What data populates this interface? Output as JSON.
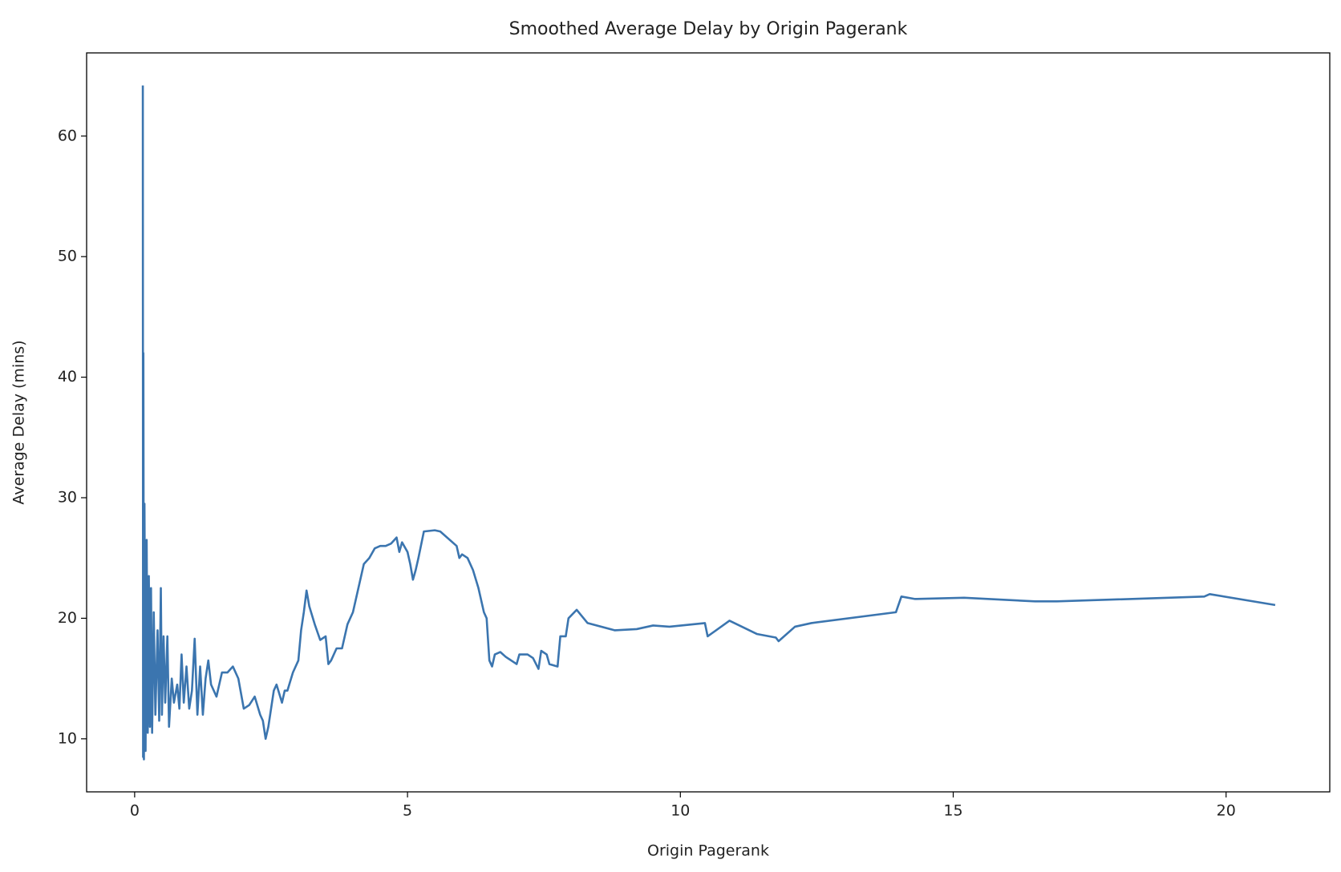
{
  "chart_data": {
    "type": "line",
    "title": "Smoothed Average Delay by Origin Pagerank",
    "xlabel": "Origin Pagerank",
    "ylabel": "Average Delay (mins)",
    "xlim": [
      -0.88,
      21.9
    ],
    "xticks": [
      0,
      5,
      10,
      15,
      20
    ],
    "ylim": [
      5.6,
      66.9
    ],
    "yticks": [
      10,
      20,
      30,
      40,
      50,
      60
    ],
    "grid": false,
    "series": [
      {
        "color": "#3b75af",
        "x": [
          0.15,
          0.155,
          0.16,
          0.17,
          0.18,
          0.2,
          0.22,
          0.24,
          0.26,
          0.28,
          0.3,
          0.32,
          0.35,
          0.38,
          0.42,
          0.45,
          0.48,
          0.5,
          0.53,
          0.56,
          0.6,
          0.63,
          0.68,
          0.72,
          0.78,
          0.82,
          0.86,
          0.9,
          0.95,
          1.0,
          1.05,
          1.1,
          1.15,
          1.2,
          1.25,
          1.3,
          1.35,
          1.4,
          1.5,
          1.6,
          1.7,
          1.8,
          1.9,
          2.0,
          2.1,
          2.2,
          2.3,
          2.35,
          2.4,
          2.45,
          2.5,
          2.55,
          2.6,
          2.7,
          2.75,
          2.8,
          2.9,
          3.0,
          3.05,
          3.1,
          3.15,
          3.2,
          3.3,
          3.4,
          3.5,
          3.55,
          3.6,
          3.7,
          3.8,
          3.9,
          4.0,
          4.1,
          4.2,
          4.3,
          4.4,
          4.5,
          4.6,
          4.7,
          4.8,
          4.85,
          4.9,
          5.0,
          5.05,
          5.1,
          5.15,
          5.2,
          5.3,
          5.5,
          5.6,
          5.9,
          5.95,
          6.0,
          6.1,
          6.2,
          6.3,
          6.4,
          6.45,
          6.5,
          6.55,
          6.6,
          6.7,
          6.8,
          6.9,
          7.0,
          7.05,
          7.2,
          7.3,
          7.4,
          7.45,
          7.55,
          7.6,
          7.75,
          7.8,
          7.9,
          7.95,
          8.1,
          8.3,
          8.8,
          9.2,
          9.5,
          9.8,
          10.45,
          10.5,
          10.9,
          11.4,
          11.75,
          11.8,
          12.1,
          12.4,
          13.95,
          14.05,
          14.3,
          15.2,
          16.5,
          16.9,
          19.6,
          19.7,
          20.9
        ],
        "values": [
          64.2,
          8.5,
          42,
          8.3,
          29.5,
          9,
          26.5,
          10.5,
          23.5,
          11,
          22.5,
          10.5,
          20.5,
          12,
          19,
          11.5,
          22.5,
          12,
          18.5,
          13,
          18.5,
          11,
          15,
          13,
          14.5,
          12.5,
          17,
          13,
          16,
          12.5,
          14,
          18.3,
          12,
          16,
          12,
          15,
          16.5,
          14.5,
          13.5,
          15.5,
          15.5,
          16,
          15,
          12.5,
          12.8,
          13.5,
          12,
          11.5,
          10,
          11,
          12.5,
          14,
          14.5,
          13,
          14,
          14,
          15.5,
          16.5,
          19,
          20.5,
          22.3,
          21,
          19.5,
          18.2,
          18.5,
          16.2,
          16.5,
          17.5,
          17.5,
          19.5,
          20.5,
          22.5,
          24.5,
          25,
          25.8,
          26,
          26,
          26.2,
          26.7,
          25.5,
          26.3,
          25.5,
          24.5,
          23.2,
          24,
          25,
          27.2,
          27.3,
          27.2,
          26,
          25,
          25.3,
          25,
          24,
          22.5,
          20.5,
          20,
          16.5,
          16,
          17,
          17.2,
          16.8,
          16.5,
          16.2,
          17,
          17,
          16.7,
          15.8,
          17.3,
          17,
          16.2,
          16,
          18.5,
          18.5,
          20,
          20.7,
          19.6,
          19,
          19.1,
          19.4,
          19.3,
          19.6,
          18.5,
          19.8,
          18.7,
          18.4,
          18.1,
          19.3,
          19.6,
          20.5,
          21.8,
          21.6,
          21.7,
          21.4,
          21.4,
          21.8,
          22,
          21.1
        ]
      }
    ]
  }
}
